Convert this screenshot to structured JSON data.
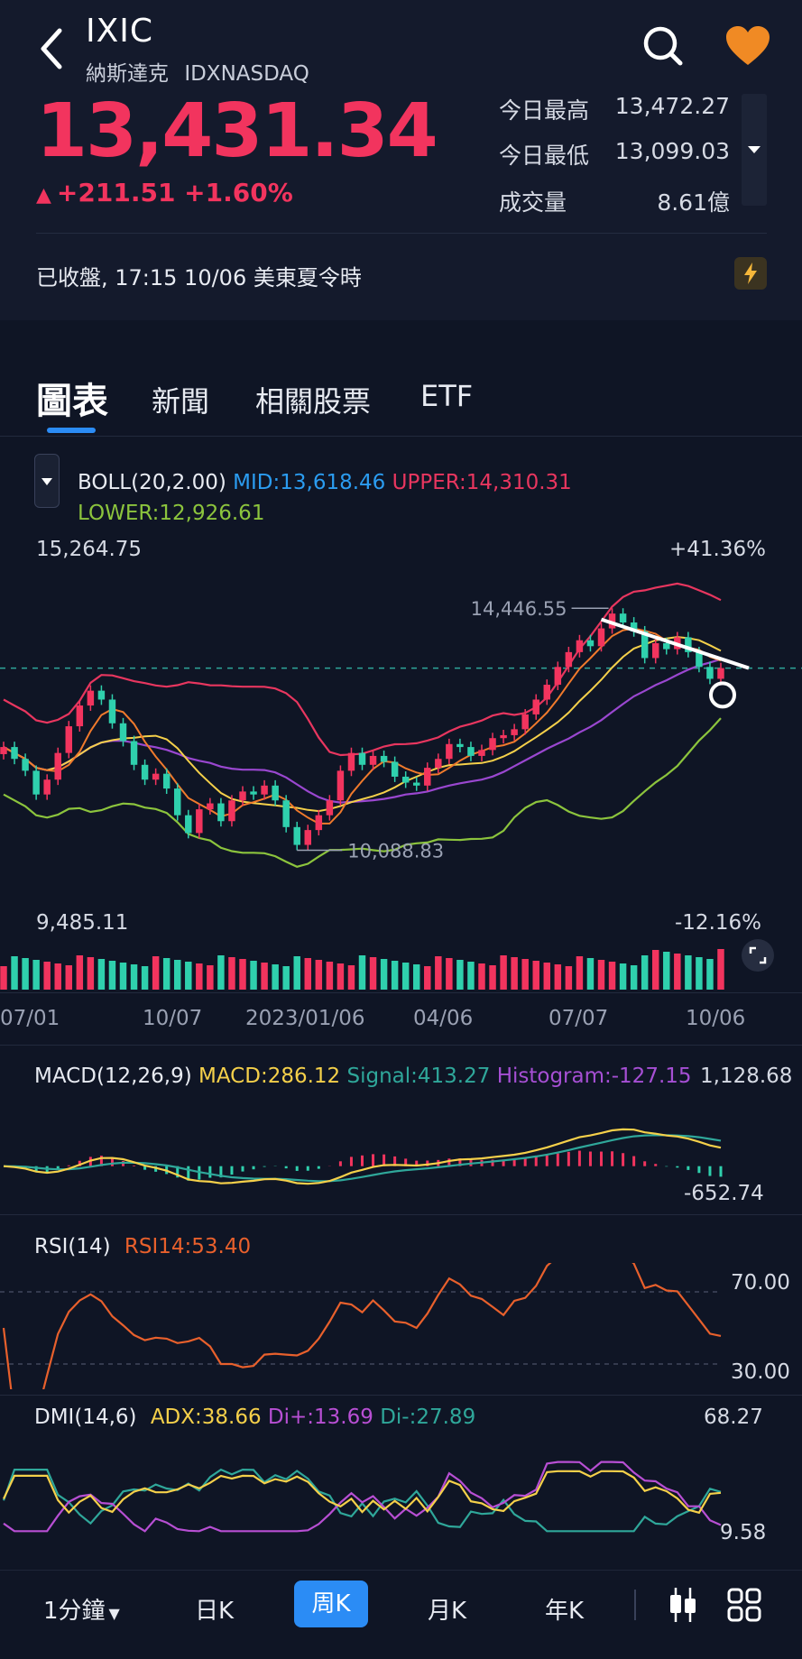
{
  "header": {
    "symbol": "IXIC",
    "name": "納斯達克",
    "exchange": "IDXNASDAQ",
    "price": "13,431.34",
    "change": "+211.51 +1.60%",
    "stats": [
      {
        "label": "今日最高",
        "value": "13,472.27"
      },
      {
        "label": "今日最低",
        "value": "13,099.03"
      },
      {
        "label": "成交量",
        "value": "8.61億"
      }
    ],
    "status": "已收盤, 17:15 10/06 美東夏令時"
  },
  "tabs": [
    "圖表",
    "新聞",
    "相關股票",
    "ETF"
  ],
  "boll": {
    "label": "BOLL(20,2.00)",
    "mid": "MID:13,618.46",
    "upper": "UPPER:14,310.31",
    "lower": "LOWER:12,926.61",
    "top_value": "15,264.75",
    "top_pct": "+41.36%",
    "bottom_value": "9,485.11",
    "bottom_pct": "-12.16%",
    "high_marker": "14,446.55",
    "low_marker": "10,088.83"
  },
  "dates": [
    "07/01",
    "10/07",
    "2023/01/06",
    "04/06",
    "07/07",
    "10/06"
  ],
  "macd": {
    "label": "MACD(12,26,9)",
    "macd": "MACD:286.12",
    "signal": "Signal:413.27",
    "histogram": "Histogram:-127.15",
    "top": "1,128.68",
    "bottom": "-652.74"
  },
  "rsi": {
    "label": "RSI(14)",
    "value": "RSI14:53.40",
    "upper": "70.00",
    "lower": "30.00"
  },
  "dmi": {
    "label": "DMI(14,6)",
    "adx": "ADX:38.66",
    "di_plus": "Di+:13.69",
    "di_minus": "Di-:27.89",
    "top": "68.27",
    "bottom": "9.58"
  },
  "toolbar": {
    "items": [
      "1分鐘",
      "日K",
      "周K",
      "月K",
      "年K"
    ],
    "active": "周K"
  },
  "colors": {
    "up": "#f2345e",
    "down": "#2fd0ad",
    "accent": "#2b8cf5",
    "mid": "#2b9cf0",
    "upper": "#e8365f",
    "lower": "#8cc43d",
    "macd": "#f5d04a",
    "signal": "#2fa79a",
    "hist": "#a64fd4",
    "rsi": "#e8602c",
    "adx": "#f5d04a",
    "diplus": "#b84fd4",
    "diminus": "#2fa79a"
  },
  "chart_data": {
    "type": "candlestick",
    "period": "weekly",
    "x_labels": [
      "07/01",
      "10/07",
      "2023/01/06",
      "04/06",
      "07/07",
      "10/06"
    ],
    "ylim": [
      9485.11,
      15264.75
    ],
    "close": [
      12100,
      11900,
      11700,
      11300,
      11550,
      12000,
      12450,
      12800,
      13050,
      12900,
      12500,
      12200,
      11800,
      11550,
      11650,
      11400,
      10950,
      10650,
      11050,
      11150,
      10850,
      11200,
      11350,
      11300,
      11450,
      11200,
      10750,
      10450,
      10700,
      10950,
      11200,
      11700,
      12000,
      11800,
      11950,
      11850,
      11600,
      11500,
      11450,
      11750,
      11900,
      12150,
      12100,
      11950,
      12050,
      12250,
      12300,
      12400,
      12650,
      12900,
      13150,
      13450,
      13700,
      13900,
      13800,
      14100,
      14350,
      14200,
      14050,
      13600,
      13850,
      13750,
      13950,
      13700,
      13450,
      13250,
      13431
    ],
    "volume_max": 1
  }
}
